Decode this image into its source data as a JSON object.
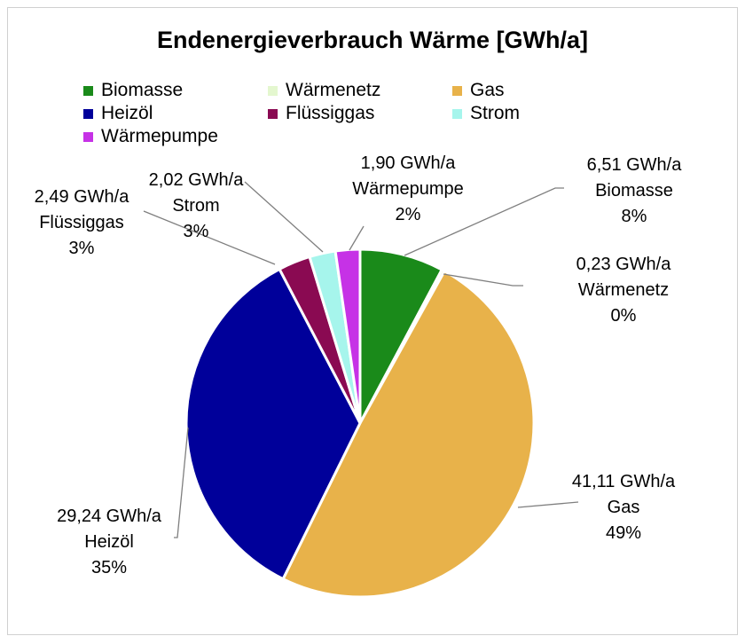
{
  "chart_data": {
    "type": "pie",
    "title": "Endenergieverbrauch Wärme [GWh/a]",
    "legend_position": "top",
    "slices": [
      {
        "name": "Biomasse",
        "value": 6.51,
        "value_label": "6,51 GWh/a",
        "percent_label": "8%",
        "color": "#1a8a1a"
      },
      {
        "name": "Wärmenetz",
        "value": 0.23,
        "value_label": "0,23 GWh/a",
        "percent_label": "0%",
        "color": "#e4f7cf"
      },
      {
        "name": "Gas",
        "value": 41.11,
        "value_label": "41,11 GWh/a",
        "percent_label": "49%",
        "color": "#e8b24a"
      },
      {
        "name": "Heizöl",
        "value": 29.24,
        "value_label": "29,24 GWh/a",
        "percent_label": "35%",
        "color": "#00009a"
      },
      {
        "name": "Flüssiggas",
        "value": 2.49,
        "value_label": "2,49 GWh/a",
        "percent_label": "3%",
        "color": "#8a0a52"
      },
      {
        "name": "Strom",
        "value": 2.02,
        "value_label": "2,02 GWh/a",
        "percent_label": "3%",
        "color": "#a6f5ec"
      },
      {
        "name": "Wärmepumpe",
        "value": 1.9,
        "value_label": "1,90 GWh/a",
        "percent_label": "2%",
        "color": "#c632e6"
      }
    ]
  }
}
